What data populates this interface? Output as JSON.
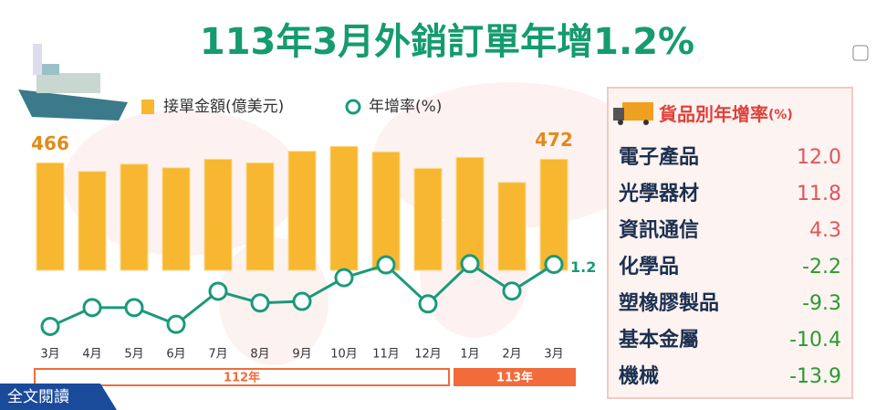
{
  "chart_data": {
    "type": "bar-line",
    "title": "113年3月外銷訂單年增1.2%",
    "categories": [
      "3月",
      "4月",
      "5月",
      "6月",
      "7月",
      "8月",
      "9月",
      "10月",
      "11月",
      "12月",
      "1月",
      "2月",
      "3月"
    ],
    "year_groups": [
      {
        "label": "112年",
        "span": 10,
        "color": "#ffffff"
      },
      {
        "label": "113年",
        "span": 3,
        "color": "#f26b3a"
      }
    ],
    "ylim": [
      290,
      510
    ],
    "y2lim": [
      -30,
      5
    ],
    "series": [
      {
        "name": "接單金額(億美元)",
        "type": "bar",
        "color": "#f7b731",
        "values": [
          466,
          452,
          464,
          458,
          472,
          466,
          485,
          493,
          484,
          457,
          475,
          434,
          472
        ],
        "value_labels": [
          "466",
          null,
          null,
          null,
          null,
          null,
          null,
          null,
          null,
          null,
          null,
          null,
          "472"
        ]
      },
      {
        "name": "年增率(%)",
        "type": "line",
        "axis": "y2",
        "color": "#1a9a7a",
        "values": [
          -25.8,
          -17.6,
          -17.6,
          -24.9,
          -10.5,
          -15.6,
          -14.9,
          -4.6,
          1.0,
          -16.0,
          1.5,
          -10.4,
          1.2
        ],
        "value_labels": [
          null,
          null,
          null,
          null,
          null,
          null,
          null,
          null,
          null,
          null,
          null,
          null,
          "1.2"
        ]
      }
    ]
  },
  "table": {
    "title": "貨品別年增率",
    "unit": "(%)",
    "rows": [
      [
        "電子產品",
        "12.0"
      ],
      [
        "光學器材",
        "11.8"
      ],
      [
        "資訊通信",
        "4.3"
      ],
      [
        "化學品",
        "-2.2"
      ],
      [
        "塑橡膠製品",
        "-9.3"
      ],
      [
        "基本金屬",
        "-10.4"
      ],
      [
        "機械",
        "-13.9"
      ]
    ]
  },
  "button": {
    "label": "全文閱讀"
  }
}
